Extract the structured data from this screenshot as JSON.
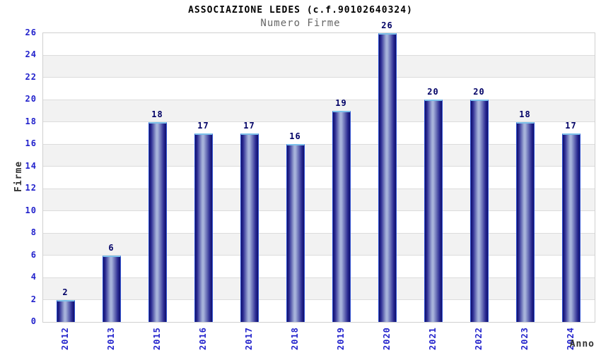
{
  "chart_data": {
    "type": "bar",
    "title": "ASSOCIAZIONE LEDES (c.f.90102640324)",
    "subtitle": "Numero Firme",
    "xlabel": "Anno",
    "ylabel": "Firme",
    "categories": [
      "2012",
      "2013",
      "2015",
      "2016",
      "2017",
      "2018",
      "2019",
      "2020",
      "2021",
      "2022",
      "2023",
      "2024"
    ],
    "values": [
      2,
      6,
      18,
      17,
      17,
      16,
      19,
      26,
      20,
      20,
      18,
      17
    ],
    "ylim": [
      0,
      26
    ],
    "ytick_step": 2,
    "grid": true,
    "legend": "none",
    "band_pattern": "alternating white/gray every 2 units starting white at 0",
    "colors": {
      "background": "#ffffff",
      "title": "#000000",
      "subtitle": "#666666",
      "axis_title": "#333333",
      "tick_label": "#2222cc",
      "value_label": "#000066",
      "plot_border": "#d0d0d0",
      "gridline": "#dcdcdc",
      "band": "#f2f2f2",
      "bar_edge_dark": "#10106b",
      "bar_mid_dark": "#2b2b93",
      "bar_center_light": "#a6b2da",
      "bar_outline": "#2e4fd0",
      "bar_cap": "#7cc0ea"
    }
  }
}
